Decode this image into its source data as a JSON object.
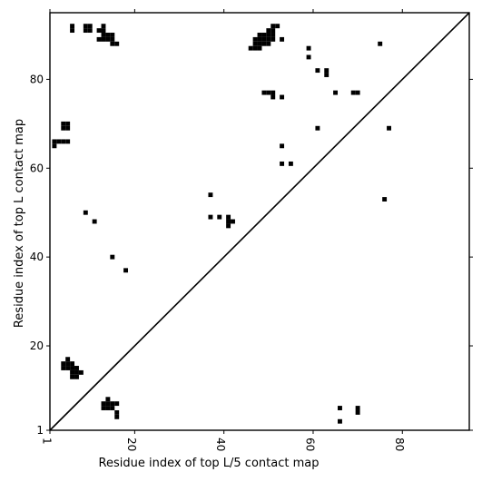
{
  "chart_data": {
    "type": "heatmap",
    "xlabel": "Residue index of top L/5 contact map",
    "ylabel": "Residue index of top L contact map",
    "xlim": [
      1,
      95
    ],
    "ylim": [
      1,
      95
    ],
    "x_ticks": [
      1,
      20,
      40,
      60,
      80
    ],
    "y_ticks": [
      1,
      20,
      40,
      60,
      80
    ],
    "diagonal": true,
    "colors": {
      "cell": "#000000",
      "background": "#ffffff",
      "line": "#000000"
    },
    "upper_triangle_contacts_top_L5": [
      [
        6,
        91
      ],
      [
        6,
        92
      ],
      [
        9,
        91
      ],
      [
        9,
        92
      ],
      [
        10,
        91
      ],
      [
        10,
        92
      ],
      [
        12,
        89
      ],
      [
        13,
        89
      ],
      [
        14,
        89
      ],
      [
        15,
        89
      ],
      [
        13,
        90
      ],
      [
        14,
        90
      ],
      [
        15,
        90
      ],
      [
        12,
        91
      ],
      [
        13,
        91
      ],
      [
        13,
        92
      ],
      [
        15,
        88
      ],
      [
        16,
        88
      ],
      [
        46,
        87
      ],
      [
        47,
        87
      ],
      [
        48,
        87
      ],
      [
        47,
        88
      ],
      [
        48,
        88
      ],
      [
        49,
        88
      ],
      [
        50,
        88
      ],
      [
        47,
        89
      ],
      [
        48,
        89
      ],
      [
        49,
        89
      ],
      [
        50,
        89
      ],
      [
        51,
        89
      ],
      [
        48,
        90
      ],
      [
        49,
        90
      ],
      [
        50,
        90
      ],
      [
        51,
        90
      ],
      [
        50,
        91
      ],
      [
        51,
        91
      ],
      [
        51,
        92
      ],
      [
        52,
        92
      ],
      [
        53,
        89
      ],
      [
        59,
        87
      ],
      [
        59,
        85
      ],
      [
        75,
        88
      ],
      [
        61,
        82
      ],
      [
        63,
        82
      ],
      [
        63,
        81
      ],
      [
        49,
        77
      ],
      [
        50,
        77
      ],
      [
        51,
        77
      ],
      [
        51,
        76
      ],
      [
        53,
        76
      ],
      [
        65,
        77
      ],
      [
        69,
        77
      ],
      [
        70,
        77
      ],
      [
        61,
        69
      ],
      [
        77,
        69
      ],
      [
        53,
        65
      ],
      [
        53,
        61
      ],
      [
        55,
        61
      ],
      [
        76,
        53
      ],
      [
        37,
        54
      ],
      [
        37,
        49
      ],
      [
        39,
        49
      ],
      [
        41,
        49
      ],
      [
        41,
        48
      ],
      [
        42,
        48
      ],
      [
        41,
        47
      ],
      [
        4,
        70
      ],
      [
        5,
        70
      ],
      [
        4,
        69
      ],
      [
        5,
        69
      ],
      [
        2,
        66
      ],
      [
        3,
        66
      ],
      [
        4,
        66
      ],
      [
        5,
        66
      ],
      [
        2,
        65
      ],
      [
        9,
        50
      ],
      [
        11,
        48
      ],
      [
        15,
        40
      ],
      [
        18,
        37
      ]
    ],
    "lower_triangle_contacts_top_L": [
      [
        4,
        16
      ],
      [
        5,
        16
      ],
      [
        6,
        16
      ],
      [
        4,
        15
      ],
      [
        5,
        15
      ],
      [
        6,
        15
      ],
      [
        7,
        15
      ],
      [
        5,
        17
      ],
      [
        6,
        14
      ],
      [
        7,
        14
      ],
      [
        8,
        14
      ],
      [
        6,
        13
      ],
      [
        7,
        13
      ],
      [
        13,
        7
      ],
      [
        14,
        7
      ],
      [
        15,
        7
      ],
      [
        16,
        7
      ],
      [
        13,
        6
      ],
      [
        14,
        6
      ],
      [
        15,
        6
      ],
      [
        14,
        8
      ],
      [
        16,
        5
      ],
      [
        16,
        4
      ],
      [
        66,
        6
      ],
      [
        66,
        3
      ],
      [
        70,
        6
      ],
      [
        70,
        5
      ]
    ]
  }
}
